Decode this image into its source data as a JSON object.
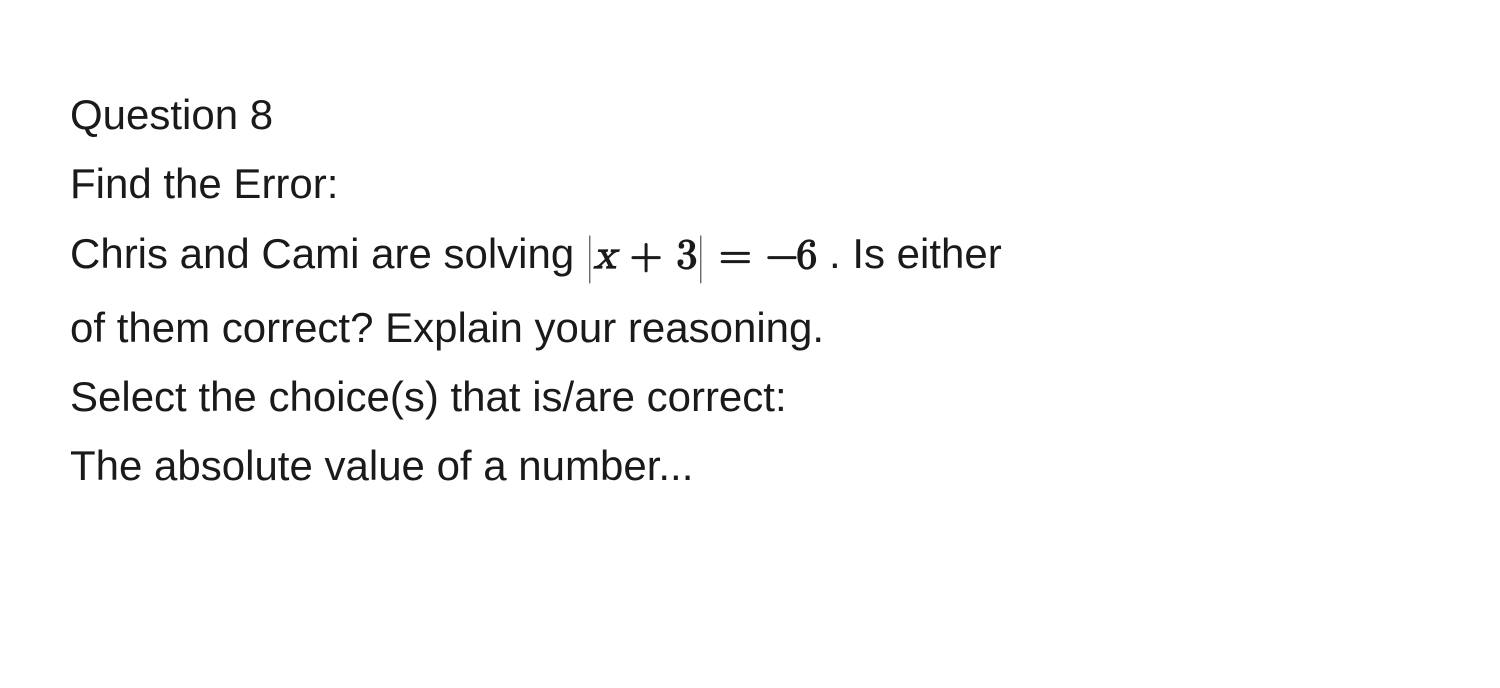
{
  "question": {
    "number_label": "Question 8",
    "task_label": "Find the Error:",
    "stem_before": "Chris and Cami are solving ",
    "equation": {
      "expr_var": "x",
      "expr_plus": " + ",
      "expr_const": "3",
      "equals": " = ",
      "rhs_minus": "−",
      "rhs_value": "6"
    },
    "stem_after1_tail": " . Is either",
    "stem_line2": "of them correct? Explain your reasoning.",
    "prompt_select": "Select the choice(s) that is/are correct:",
    "stem_final": "The absolute value of a number..."
  },
  "style": {
    "text_color": "#1a1a1a",
    "background_color": "#ffffff",
    "font_size_pt": 32,
    "line_height": 1.65
  }
}
